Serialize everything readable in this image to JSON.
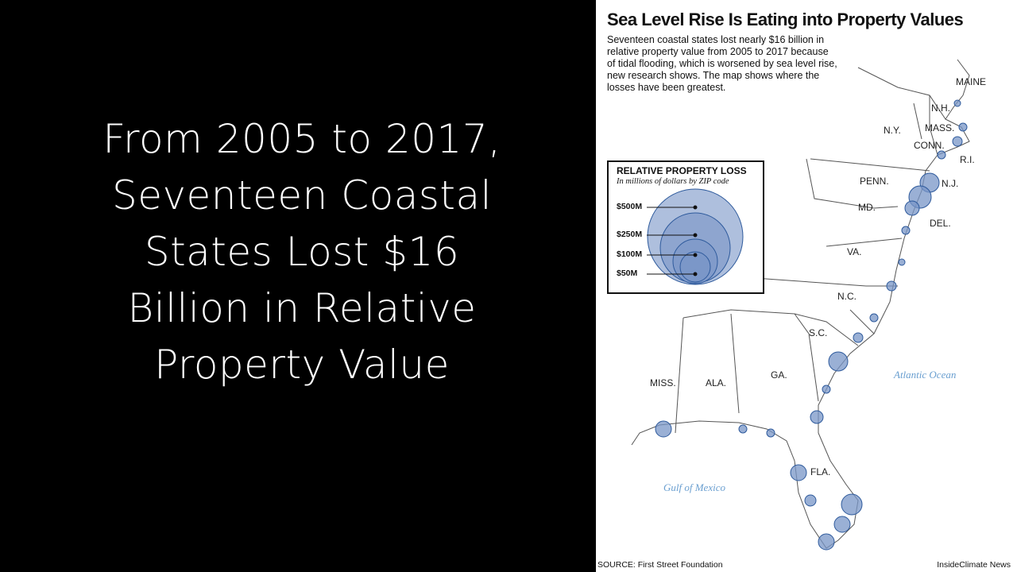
{
  "slide": {
    "lines": [
      "From 2005 to 2017,",
      "Seventeen Coastal",
      "States Lost $16",
      "Billion in Relative",
      "Property Value"
    ]
  },
  "map": {
    "title": "Sea Level Rise Is Eating into Property Values",
    "subtitle_lines": [
      "Seventeen coastal states lost nearly $16 billion in",
      "relative property value from 2005 to 2017 because",
      "of tidal flooding, which is worsened by sea level rise,",
      "new research shows. The map shows where the",
      "losses have been greatest."
    ],
    "legend": {
      "title": "RELATIVE PROPERTY LOSS",
      "subtitle": "In millions of dollars by ZIP code",
      "sizes": [
        "$500M",
        "$250M",
        "$100M",
        "$50M"
      ]
    },
    "states": [
      "MAINE",
      "N.H.",
      "MASS.",
      "N.Y.",
      "CONN.",
      "R.I.",
      "PENN.",
      "N.J.",
      "MD.",
      "DEL.",
      "VA.",
      "N.C.",
      "S.C.",
      "GA.",
      "ALA.",
      "MISS.",
      "FLA."
    ],
    "water": [
      "Atlantic Ocean",
      "Gulf of Mexico"
    ],
    "source": "SOURCE: First Street Foundation",
    "credit": "InsideClimate News",
    "colors": {
      "bubble": "#2e5a9c",
      "bubble_fill": "#7895c7",
      "water_label": "#6a9fd0"
    }
  }
}
